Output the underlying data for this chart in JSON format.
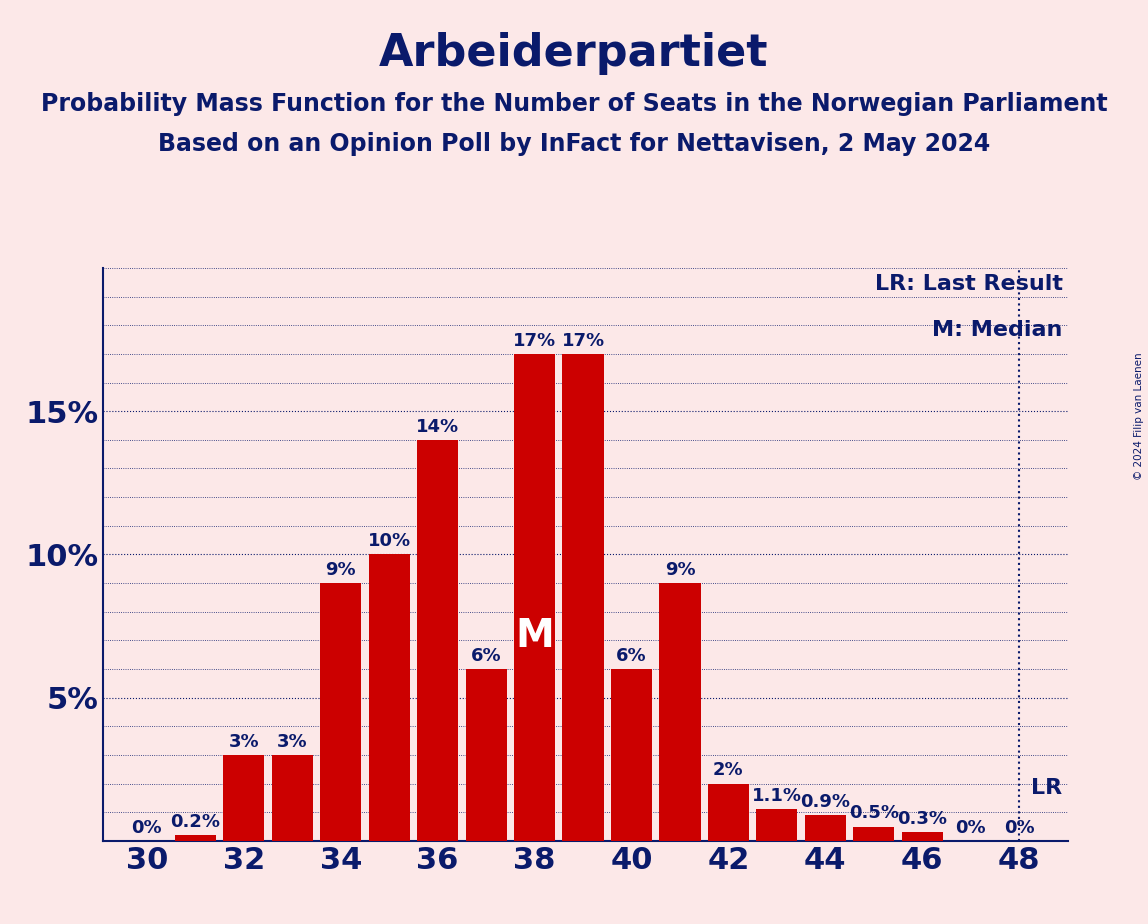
{
  "title": "Arbeiderpartiet",
  "subtitle1": "Probability Mass Function for the Number of Seats in the Norwegian Parliament",
  "subtitle2": "Based on an Opinion Poll by InFact for Nettavisen, 2 May 2024",
  "copyright": "© 2024 Filip van Laenen",
  "seats": [
    30,
    31,
    32,
    33,
    34,
    35,
    36,
    37,
    38,
    39,
    40,
    41,
    42,
    43,
    44,
    45,
    46,
    47,
    48
  ],
  "probabilities": [
    0.0,
    0.2,
    3.0,
    3.0,
    9.0,
    10.0,
    14.0,
    6.0,
    17.0,
    17.0,
    6.0,
    9.0,
    2.0,
    1.1,
    0.9,
    0.5,
    0.3,
    0.0,
    0.0
  ],
  "bar_color": "#cc0000",
  "background_color": "#fce8e8",
  "text_color": "#0a1a6b",
  "median_seat": 38,
  "lr_seat": 48,
  "legend_lr": "LR: Last Result",
  "legend_m": "M: Median",
  "xtick_seats": [
    30,
    32,
    34,
    36,
    38,
    40,
    42,
    44,
    46,
    48
  ],
  "grid_color": "#0a1a6b",
  "title_fontsize": 32,
  "subtitle_fontsize": 17,
  "label_fontsize": 13,
  "axis_fontsize": 22,
  "legend_fontsize": 16
}
